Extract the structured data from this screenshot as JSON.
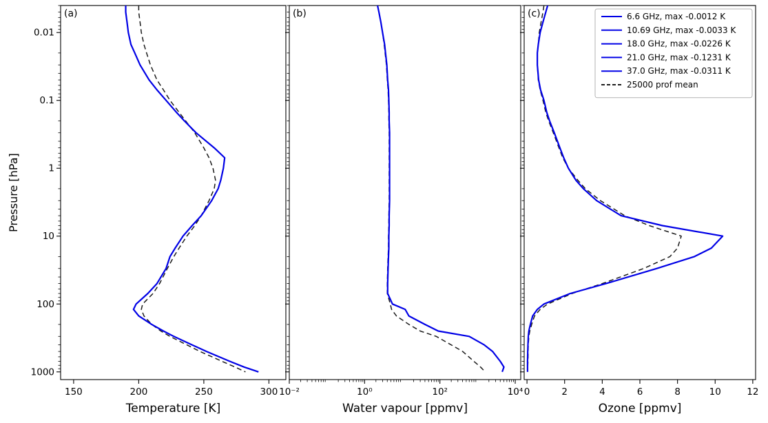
{
  "figure": {
    "ylabel": "Pressure [hPa]",
    "ylim": [
      0.004,
      1300
    ],
    "yscale": "log-inverted",
    "y_ticks": [
      0.01,
      0.1,
      1,
      10,
      100,
      1000
    ],
    "y_tick_labels": [
      "0.01",
      "0.1",
      "1",
      "10",
      "100",
      "1000"
    ],
    "pressure_levels_hPa": [
      0.004,
      0.005,
      0.007,
      0.01,
      0.015,
      0.02,
      0.03,
      0.05,
      0.07,
      0.1,
      0.15,
      0.2,
      0.3,
      0.5,
      0.7,
      1,
      1.5,
      2,
      3,
      5,
      7,
      10,
      15,
      20,
      30,
      50,
      70,
      100,
      120,
      150,
      200,
      250,
      300,
      400,
      500,
      700,
      850,
      1000
    ],
    "colors": {
      "channel_line": "#0000e6",
      "mean_line": "#1a1a1a",
      "legend_border": "#b3b3b3"
    },
    "legend": {
      "position": "top-right-panel-c",
      "entries": [
        {
          "label": "6.6 GHz, max -0.0012 K",
          "color": "#0000e6",
          "style": "solid"
        },
        {
          "label": "10.69 GHz, max -0.0033 K",
          "color": "#0000e6",
          "style": "solid"
        },
        {
          "label": "18.0 GHz, max -0.0226 K",
          "color": "#0000e6",
          "style": "solid"
        },
        {
          "label": "21.0 GHz, max -0.1231 K",
          "color": "#0000e6",
          "style": "solid"
        },
        {
          "label": "37.0 GHz, max -0.0311 K",
          "color": "#0000e6",
          "style": "solid"
        },
        {
          "label": "25000 prof mean",
          "color": "#1a1a1a",
          "style": "dashed"
        }
      ]
    }
  },
  "chart_data": [
    {
      "type": "line",
      "label": "(a)",
      "xlabel": "Temperature [K]",
      "xscale": "linear",
      "xlim": [
        140,
        313
      ],
      "x_ticks": [
        150,
        200,
        250,
        300
      ],
      "x_tick_labels": [
        "150",
        "200",
        "250",
        "300"
      ],
      "grid": false,
      "series": [
        {
          "name": "frequency channels (5 overlapping)",
          "color": "#0000e6",
          "style": "solid",
          "width": 2.2,
          "values": [
            190,
            190,
            191,
            192,
            194,
            197,
            201,
            208,
            214,
            221,
            229,
            235,
            244,
            258,
            266,
            265,
            263,
            261,
            256,
            248,
            241,
            234,
            228,
            224,
            221,
            214,
            207,
            198,
            196,
            200,
            210,
            219,
            227,
            241,
            252,
            270,
            281,
            292
          ]
        },
        {
          "name": "25000 prof mean",
          "color": "#1a1a1a",
          "style": "dashed",
          "width": 1.5,
          "values": [
            200,
            200,
            201,
            202,
            204,
            206,
            209,
            214,
            219,
            224,
            231,
            236,
            243,
            250,
            254,
            257,
            259,
            258,
            254,
            248,
            243,
            237,
            231,
            227,
            222,
            216,
            211,
            203,
            202,
            204,
            210,
            217,
            224,
            237,
            247,
            264,
            274,
            282
          ]
        }
      ]
    },
    {
      "type": "line",
      "label": "(b)",
      "xlabel": "Water vapour [ppmv]",
      "xscale": "log",
      "xlim": [
        0.01,
        14000
      ],
      "x_ticks": [
        0.01,
        1,
        100,
        10000
      ],
      "x_tick_labels": [
        "10⁻²",
        "10⁰",
        "10²",
        "10⁴"
      ],
      "grid": false,
      "series": [
        {
          "name": "frequency channels (5 overlapping)",
          "color": "#0000e6",
          "style": "solid",
          "width": 2.2,
          "values": [
            2.2,
            2.4,
            2.7,
            3.0,
            3.4,
            3.6,
            3.9,
            4.1,
            4.3,
            4.4,
            4.5,
            4.5,
            4.6,
            4.6,
            4.6,
            4.6,
            4.6,
            4.6,
            4.6,
            4.5,
            4.5,
            4.4,
            4.4,
            4.3,
            4.2,
            4.1,
            4.1,
            5.5,
            12,
            15,
            40,
            90,
            600,
            1500,
            2500,
            4000,
            5000,
            4500
          ]
        },
        {
          "name": "25000 prof mean",
          "color": "#1a1a1a",
          "style": "dashed",
          "width": 1.5,
          "values": [
            2.2,
            2.4,
            2.7,
            3.0,
            3.3,
            3.5,
            3.8,
            4.0,
            4.2,
            4.3,
            4.4,
            4.4,
            4.5,
            4.5,
            4.5,
            4.5,
            4.5,
            4.5,
            4.5,
            4.4,
            4.4,
            4.3,
            4.3,
            4.2,
            4.1,
            4.0,
            4.0,
            4.8,
            5.2,
            7,
            15,
            30,
            80,
            200,
            400,
            800,
            1200,
            1600
          ]
        }
      ]
    },
    {
      "type": "line",
      "label": "(c)",
      "xlabel": "Ozone [ppmv]",
      "xscale": "linear",
      "xlim": [
        -0.15,
        12.15
      ],
      "x_ticks": [
        0,
        2,
        4,
        6,
        8,
        10,
        12
      ],
      "x_tick_labels": [
        "0",
        "2",
        "4",
        "6",
        "8",
        "10",
        "12"
      ],
      "grid": false,
      "series": [
        {
          "name": "frequency channels (5 overlapping)",
          "color": "#0000e6",
          "style": "solid",
          "width": 2.2,
          "values": [
            1.1,
            1.0,
            0.85,
            0.7,
            0.6,
            0.55,
            0.55,
            0.62,
            0.72,
            0.9,
            1.05,
            1.2,
            1.45,
            1.75,
            1.95,
            2.2,
            2.6,
            3.0,
            3.7,
            5.0,
            7.2,
            10.4,
            9.8,
            8.9,
            6.9,
            4.2,
            2.3,
            0.9,
            0.55,
            0.3,
            0.18,
            0.1,
            0.07,
            0.05,
            0.04,
            0.03,
            0.03,
            0.03
          ]
        },
        {
          "name": "25000 prof mean",
          "color": "#1a1a1a",
          "style": "dashed",
          "width": 1.5,
          "values": [
            0.9,
            0.85,
            0.75,
            0.65,
            0.6,
            0.55,
            0.55,
            0.6,
            0.7,
            0.85,
            1.0,
            1.15,
            1.4,
            1.7,
            1.9,
            2.2,
            2.7,
            3.1,
            3.9,
            5.2,
            6.5,
            8.2,
            8.0,
            7.6,
            6.2,
            4.0,
            2.4,
            1.1,
            0.7,
            0.4,
            0.25,
            0.15,
            0.1,
            0.07,
            0.06,
            0.05,
            0.04,
            0.04
          ]
        }
      ]
    }
  ]
}
